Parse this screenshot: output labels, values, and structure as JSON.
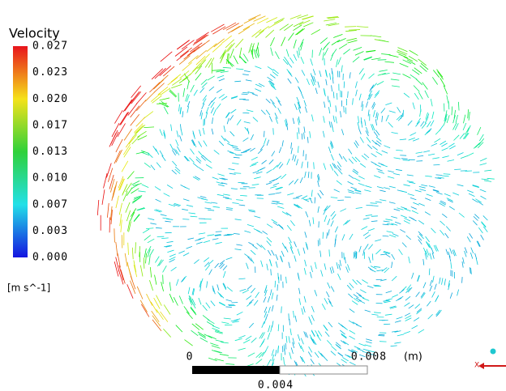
{
  "legend": {
    "title": "Velocity",
    "ticks": [
      "0.027",
      "0.023",
      "0.020",
      "0.017",
      "0.013",
      "0.010",
      "0.007",
      "0.003",
      "0.000"
    ],
    "units": "[m s^-1]"
  },
  "scale_bar": {
    "start": "0",
    "end": "0.008",
    "unit": "(m)",
    "middle": "0.004"
  },
  "axis_triad": {
    "label": "X"
  }
}
